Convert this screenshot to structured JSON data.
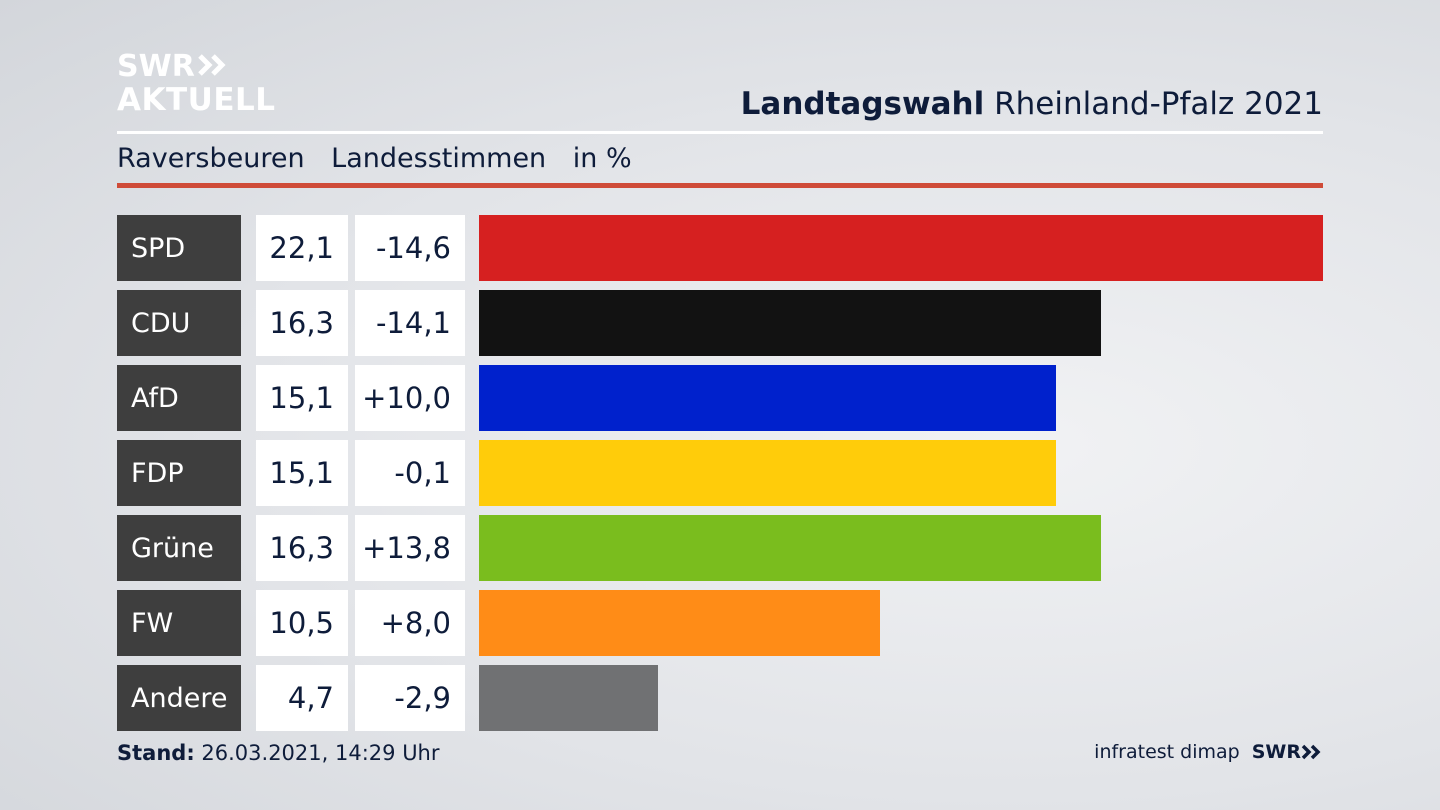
{
  "logo": {
    "line1": "SWR",
    "line2": "AKTUELL"
  },
  "header": {
    "title_bold": "Landtagswahl",
    "title_rest": "Rheinland-Pfalz 2021"
  },
  "subheader": {
    "place": "Raversbeuren",
    "vote_type": "Landesstimmen",
    "unit": "in %"
  },
  "colors": {
    "accent_line": "#cf4b38",
    "label_bg": "#3e3e3e"
  },
  "chart_data": {
    "type": "bar",
    "orientation": "horizontal",
    "categories": [
      "SPD",
      "CDU",
      "AfD",
      "FDP",
      "Grüne",
      "FW",
      "Andere"
    ],
    "values": [
      22.1,
      16.3,
      15.1,
      15.1,
      16.3,
      10.5,
      4.7
    ],
    "value_labels": [
      "22,1",
      "16,3",
      "15,1",
      "15,1",
      "16,3",
      "10,5",
      "4,7"
    ],
    "change_labels": [
      "-14,6",
      "-14,1",
      "+10,0",
      "-0,1",
      "+13,8",
      "+8,0",
      "-2,9"
    ],
    "changes": [
      -14.6,
      -14.1,
      10.0,
      -0.1,
      13.8,
      8.0,
      -2.9
    ],
    "bar_colors": [
      "#d62020",
      "#121212",
      "#0021cc",
      "#ffcc0a",
      "#7abd1e",
      "#ff8c17",
      "#707173"
    ],
    "xlim": [
      0,
      22.1
    ],
    "grid": false,
    "legend": "none"
  },
  "footer": {
    "stand_label": "Stand:",
    "stand_value": "26.03.2021, 14:29 Uhr",
    "source": "infratest dimap",
    "brand": "SWR"
  }
}
